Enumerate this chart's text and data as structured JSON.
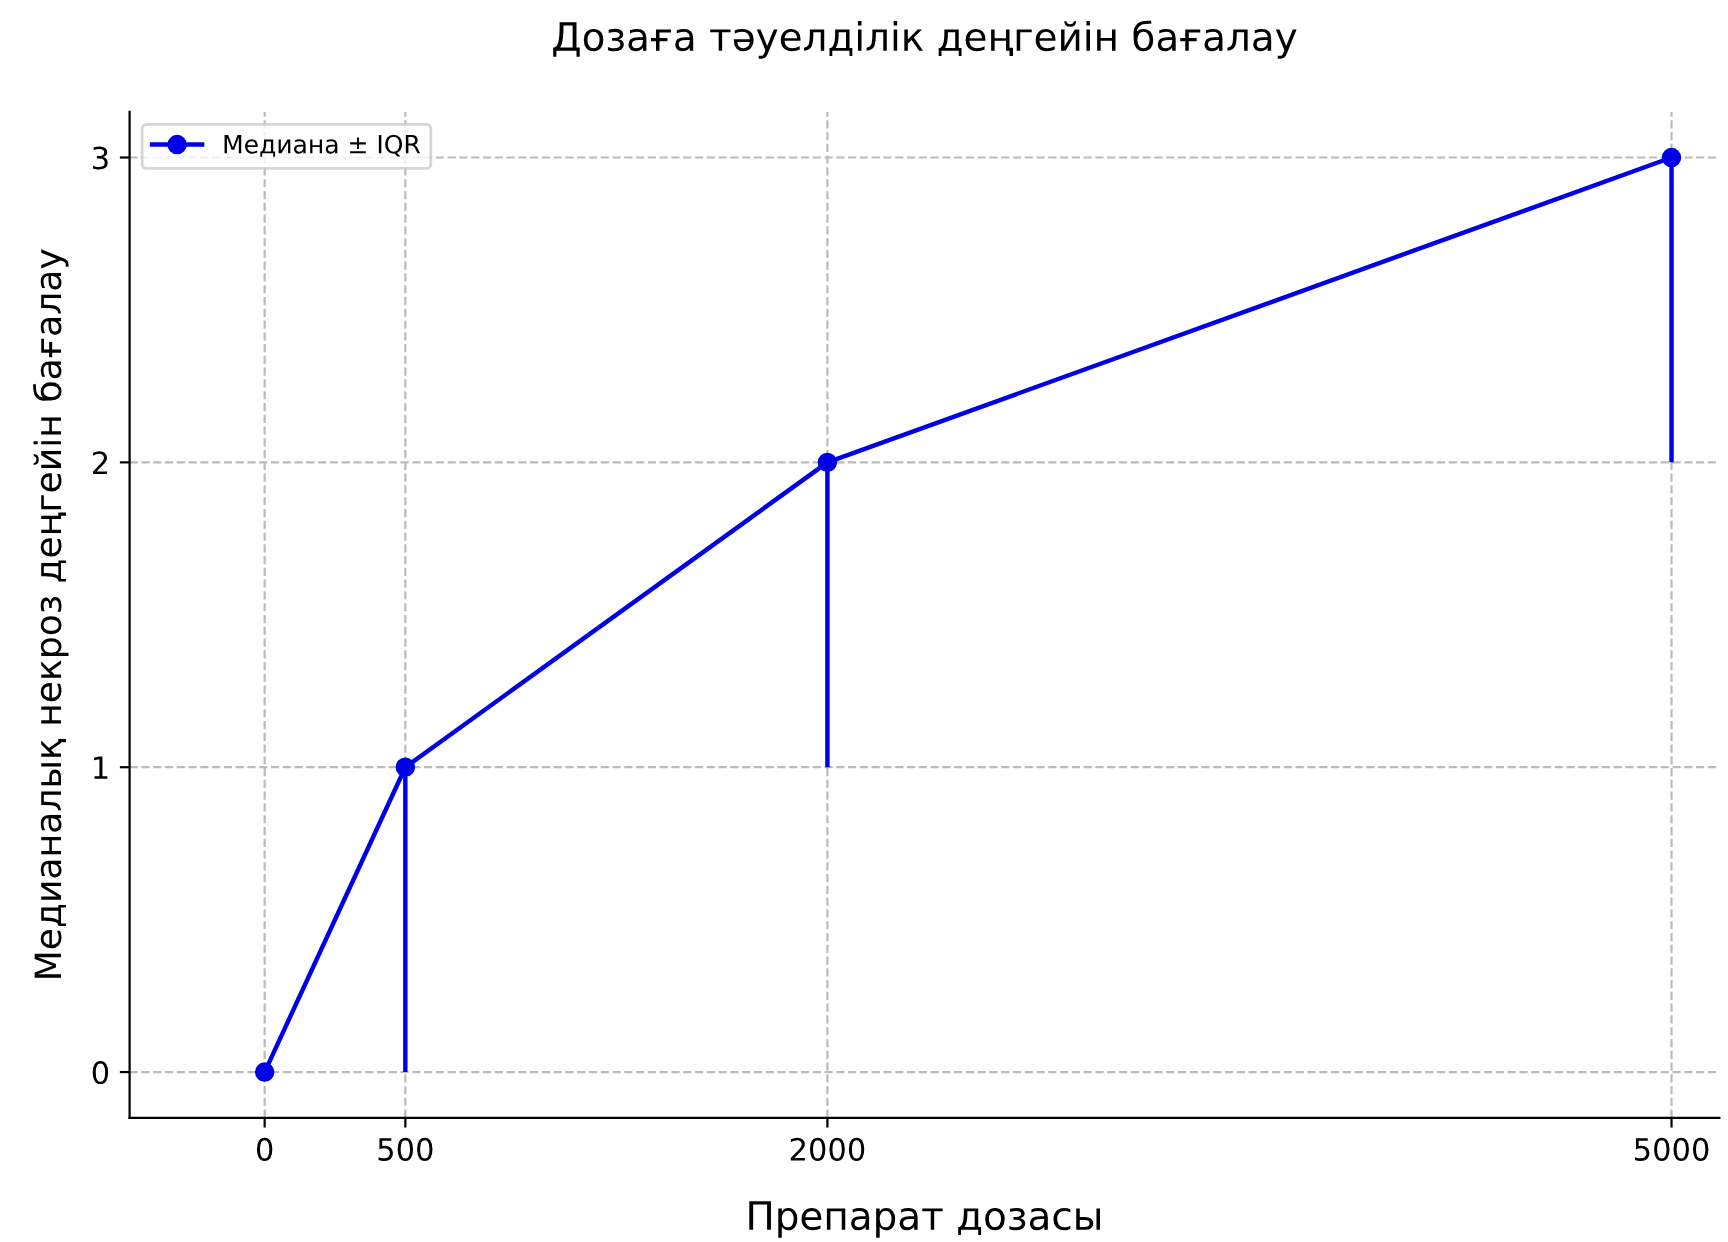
{
  "chart_data": {
    "type": "line",
    "title": "Дозаға тәуелділік деңгейін бағалау",
    "xlabel": "Препарат дозасы",
    "ylabel": "Медианалық некроз деңгейін бағалау",
    "x": [
      0,
      500,
      2000,
      5000
    ],
    "series": [
      {
        "name": "Медиана ± IQR",
        "color": "#0000e6",
        "values": [
          0,
          1,
          2,
          3
        ],
        "errors": [
          null,
          [
            0,
            1
          ],
          [
            1,
            2
          ],
          [
            2,
            3
          ]
        ]
      }
    ],
    "xlim": [
      -480,
      5170
    ],
    "xticks": [
      0,
      500,
      2000,
      5000
    ],
    "ylim": [
      -0.15,
      3.15
    ],
    "yticks": [
      0,
      1,
      2,
      3
    ],
    "grid": true,
    "legend": "top left",
    "marker": "circle",
    "line_style": "solid"
  }
}
